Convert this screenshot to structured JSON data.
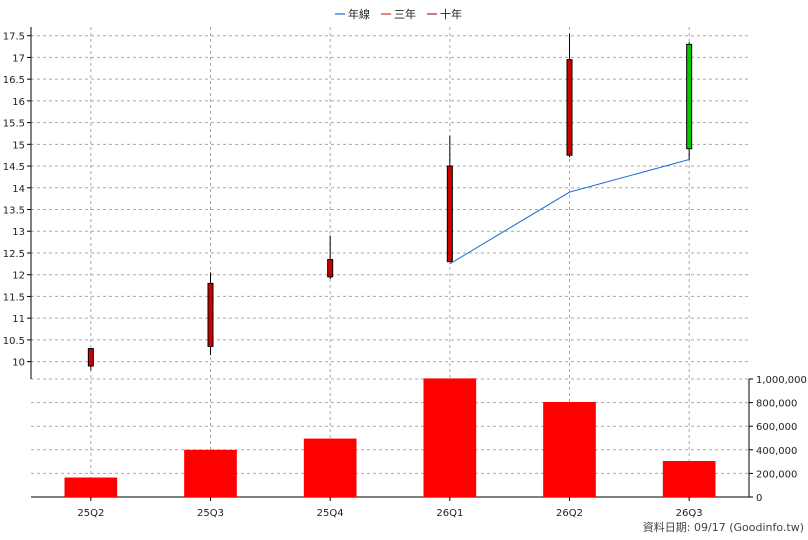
{
  "chart_data": {
    "type": "candlestick",
    "title": "",
    "categories": [
      "25Q2",
      "25Q3",
      "25Q4",
      "26Q1",
      "26Q2",
      "26Q3"
    ],
    "legend": [
      {
        "label": "年線",
        "color": "#1f6fd1"
      },
      {
        "label": "三年",
        "color": "#e03030"
      },
      {
        "label": "十年",
        "color": "#8a1e5a"
      }
    ],
    "legend_position": "top-center",
    "grid": true,
    "price_axis": {
      "position": "left",
      "range": [
        9.6,
        17.7
      ],
      "ticks": [
        "10",
        "10.5",
        "11",
        "11.5",
        "12",
        "12.5",
        "13",
        "13.5",
        "14",
        "14.5",
        "15",
        "15.5",
        "16",
        "16.5",
        "17",
        "17.5"
      ]
    },
    "volume_axis": {
      "position": "right",
      "range": [
        0,
        1000000
      ],
      "ticks": [
        "0",
        "200,000",
        "400,000",
        "600,000",
        "800,000",
        "1,000,000"
      ]
    },
    "candles": [
      {
        "x": "25Q2",
        "open": 10.3,
        "high": 10.3,
        "low": 9.8,
        "close": 9.9,
        "color": "#cc0000"
      },
      {
        "x": "25Q3",
        "open": 10.35,
        "high": 12.05,
        "low": 10.15,
        "close": 11.8,
        "color": "#cc0000"
      },
      {
        "x": "25Q4",
        "open": 11.95,
        "high": 12.9,
        "low": 11.9,
        "close": 12.35,
        "color": "#cc0000"
      },
      {
        "x": "26Q1",
        "open": 12.3,
        "high": 15.2,
        "low": 12.3,
        "close": 14.5,
        "color": "#cc0000"
      },
      {
        "x": "26Q2",
        "open": 14.75,
        "high": 17.55,
        "low": 14.7,
        "close": 16.95,
        "color": "#cc0000"
      },
      {
        "x": "26Q3",
        "open": 17.3,
        "high": 17.35,
        "low": 14.65,
        "close": 14.9,
        "color": "#00cc00"
      }
    ],
    "series": [
      {
        "name": "年線",
        "color": "#1f6fd1",
        "points": [
          {
            "x": "26Q1",
            "y": 12.25
          },
          {
            "x": "26Q2",
            "y": 13.9
          },
          {
            "x": "26Q3",
            "y": 14.65
          }
        ]
      }
    ],
    "volume": {
      "color": "#ff0000",
      "values": [
        165000,
        400000,
        495000,
        1005000,
        805000,
        305000
      ]
    }
  },
  "footer": {
    "source_text": "資料日期: 09/17  (Goodinfo.tw)"
  }
}
